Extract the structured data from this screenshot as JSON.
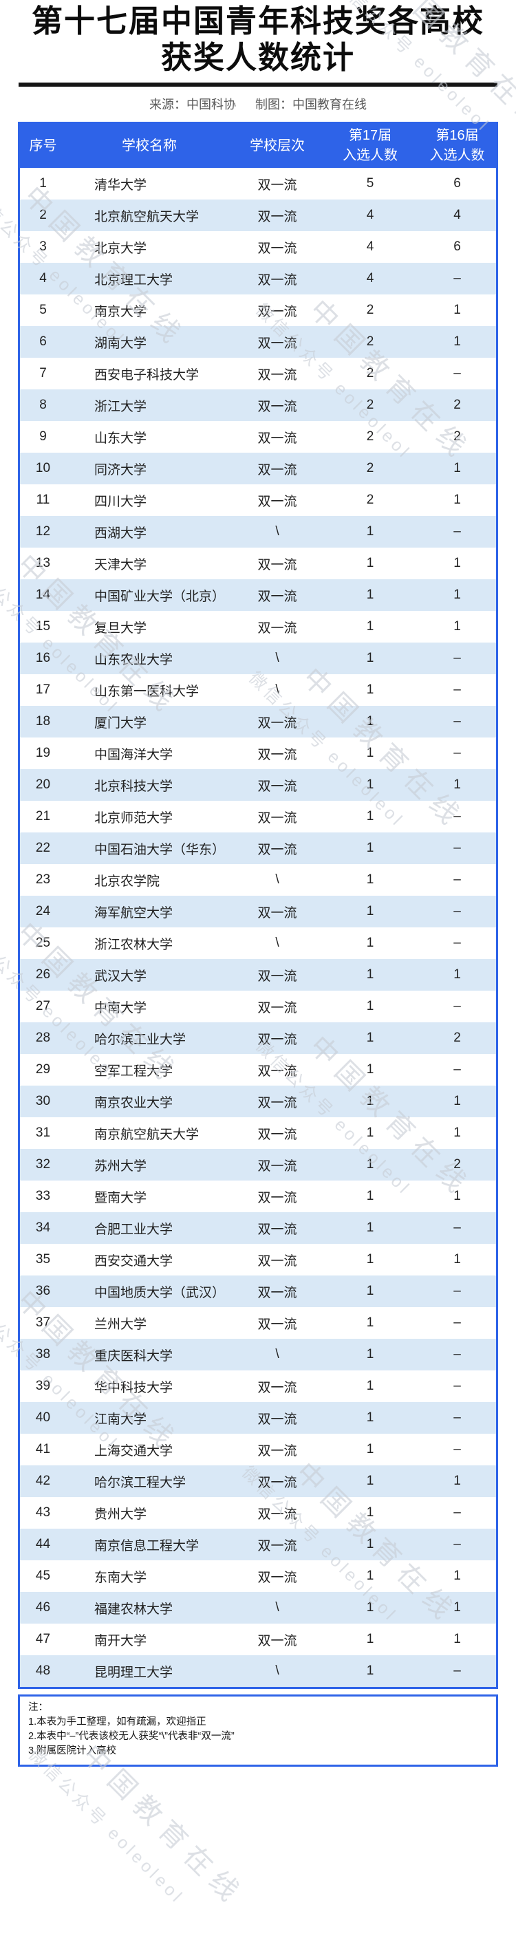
{
  "header": {
    "title_line1": "第十七届中国青年科技奖各高校",
    "title_line2": "获奖人数统计",
    "source_label": "来源：中国科协",
    "credit_label": "制图：中国教育在线"
  },
  "colors": {
    "accent_blue": "#2e63e8",
    "row_alt_blue": "#d9e8f6",
    "rule_black": "#151515",
    "watermark_gray": "#c6ccd4"
  },
  "watermark": {
    "line1": "中国教育在线",
    "line2": "微信公众号 eoleoleol"
  },
  "table": {
    "columns": [
      {
        "label": "序号"
      },
      {
        "label": "学校名称"
      },
      {
        "label": "学校层次"
      },
      {
        "line1": "第17届",
        "line2": "入选人数"
      },
      {
        "line1": "第16届",
        "line2": "入选人数"
      }
    ]
  },
  "notes": {
    "heading": "注：",
    "items": [
      "1.本表为手工整理，如有疏漏，欢迎指正",
      "2.本表中“–”代表该校无人获奖“\\”代表非“双一流”",
      "3.附属医院计入高校"
    ]
  },
  "chart_data": {
    "type": "table",
    "title": "第十七届中国青年科技奖各高校获奖人数统计",
    "source": "来源：中国科协",
    "credit": "制图：中国教育在线",
    "columns": [
      "序号",
      "学校名称",
      "学校层次",
      "第17届入选人数",
      "第16届入选人数"
    ],
    "rows": [
      [
        "1",
        "清华大学",
        "双一流",
        "5",
        "6"
      ],
      [
        "2",
        "北京航空航天大学",
        "双一流",
        "4",
        "4"
      ],
      [
        "3",
        "北京大学",
        "双一流",
        "4",
        "6"
      ],
      [
        "4",
        "北京理工大学",
        "双一流",
        "4",
        "–"
      ],
      [
        "5",
        "南京大学",
        "双一流",
        "2",
        "1"
      ],
      [
        "6",
        "湖南大学",
        "双一流",
        "2",
        "1"
      ],
      [
        "7",
        "西安电子科技大学",
        "双一流",
        "2",
        "–"
      ],
      [
        "8",
        "浙江大学",
        "双一流",
        "2",
        "2"
      ],
      [
        "9",
        "山东大学",
        "双一流",
        "2",
        "2"
      ],
      [
        "10",
        "同济大学",
        "双一流",
        "2",
        "1"
      ],
      [
        "11",
        "四川大学",
        "双一流",
        "2",
        "1"
      ],
      [
        "12",
        "西湖大学",
        "\\",
        "1",
        "–"
      ],
      [
        "13",
        "天津大学",
        "双一流",
        "1",
        "1"
      ],
      [
        "14",
        "中国矿业大学（北京）",
        "双一流",
        "1",
        "1"
      ],
      [
        "15",
        "复旦大学",
        "双一流",
        "1",
        "1"
      ],
      [
        "16",
        "山东农业大学",
        "\\",
        "1",
        "–"
      ],
      [
        "17",
        "山东第一医科大学",
        "\\",
        "1",
        "–"
      ],
      [
        "18",
        "厦门大学",
        "双一流",
        "1",
        "–"
      ],
      [
        "19",
        "中国海洋大学",
        "双一流",
        "1",
        "–"
      ],
      [
        "20",
        "北京科技大学",
        "双一流",
        "1",
        "1"
      ],
      [
        "21",
        "北京师范大学",
        "双一流",
        "1",
        "–"
      ],
      [
        "22",
        "中国石油大学（华东）",
        "双一流",
        "1",
        "–"
      ],
      [
        "23",
        "北京农学院",
        "\\",
        "1",
        "–"
      ],
      [
        "24",
        "海军航空大学",
        "双一流",
        "1",
        "–"
      ],
      [
        "25",
        "浙江农林大学",
        "\\",
        "1",
        "–"
      ],
      [
        "26",
        "武汉大学",
        "双一流",
        "1",
        "1"
      ],
      [
        "27",
        "中南大学",
        "双一流",
        "1",
        "–"
      ],
      [
        "28",
        "哈尔滨工业大学",
        "双一流",
        "1",
        "2"
      ],
      [
        "29",
        "空军工程大学",
        "双一流",
        "1",
        "–"
      ],
      [
        "30",
        "南京农业大学",
        "双一流",
        "1",
        "1"
      ],
      [
        "31",
        "南京航空航天大学",
        "双一流",
        "1",
        "1"
      ],
      [
        "32",
        "苏州大学",
        "双一流",
        "1",
        "2"
      ],
      [
        "33",
        "暨南大学",
        "双一流",
        "1",
        "1"
      ],
      [
        "34",
        "合肥工业大学",
        "双一流",
        "1",
        "–"
      ],
      [
        "35",
        "西安交通大学",
        "双一流",
        "1",
        "1"
      ],
      [
        "36",
        "中国地质大学（武汉）",
        "双一流",
        "1",
        "–"
      ],
      [
        "37",
        "兰州大学",
        "双一流",
        "1",
        "–"
      ],
      [
        "38",
        "重庆医科大学",
        "\\",
        "1",
        "–"
      ],
      [
        "39",
        "华中科技大学",
        "双一流",
        "1",
        "–"
      ],
      [
        "40",
        "江南大学",
        "双一流",
        "1",
        "–"
      ],
      [
        "41",
        "上海交通大学",
        "双一流",
        "1",
        "–"
      ],
      [
        "42",
        "哈尔滨工程大学",
        "双一流",
        "1",
        "1"
      ],
      [
        "43",
        "贵州大学",
        "双一流",
        "1",
        "–"
      ],
      [
        "44",
        "南京信息工程大学",
        "双一流",
        "1",
        "–"
      ],
      [
        "45",
        "东南大学",
        "双一流",
        "1",
        "1"
      ],
      [
        "46",
        "福建农林大学",
        "\\",
        "1",
        "1"
      ],
      [
        "47",
        "南开大学",
        "双一流",
        "1",
        "1"
      ],
      [
        "48",
        "昆明理工大学",
        "\\",
        "1",
        "–"
      ]
    ]
  }
}
